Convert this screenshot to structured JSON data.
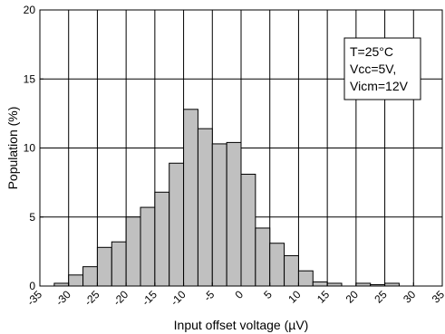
{
  "chart_data": {
    "type": "bar",
    "title": "",
    "xlabel": "Input offset voltage (µV)",
    "ylabel": "Population (%)",
    "xlim": [
      -35,
      35
    ],
    "ylim": [
      0,
      20
    ],
    "grid": true,
    "bin_width": 2.5,
    "x_ticks": [
      -35,
      -30,
      -25,
      -20,
      -15,
      -10,
      -5,
      0,
      5,
      10,
      15,
      20,
      25,
      30,
      35
    ],
    "x_tick_labels": [
      "-35",
      "-30",
      "-25",
      "-20",
      "-15",
      "-10",
      "-5",
      "0",
      "5",
      "10",
      "15",
      "20",
      "25",
      "30",
      "35"
    ],
    "y_ticks": [
      0,
      5,
      10,
      15,
      20
    ],
    "y_tick_labels": [
      "0",
      "5",
      "10",
      "15",
      "20"
    ],
    "bin_starts": [
      -35,
      -32.5,
      -30,
      -27.5,
      -25,
      -22.5,
      -20,
      -17.5,
      -15,
      -12.5,
      -10,
      -7.5,
      -5,
      -2.5,
      0,
      2.5,
      5,
      7.5,
      10,
      12.5,
      15,
      17.5,
      20,
      22.5,
      25,
      27.5,
      30,
      32.5
    ],
    "values": [
      0,
      0.2,
      0.8,
      1.4,
      2.8,
      3.2,
      5.0,
      5.7,
      6.8,
      8.9,
      12.8,
      11.4,
      10.3,
      10.4,
      8.1,
      4.2,
      3.1,
      2.2,
      1.1,
      0.3,
      0.2,
      0,
      0.2,
      0.1,
      0.2,
      0,
      0,
      0
    ],
    "bar_color": "#c0c0c0",
    "legend_position": "top-right",
    "legend_lines": [
      "T=25°C",
      "Vcc=5V,",
      "Vicm=12V"
    ]
  }
}
